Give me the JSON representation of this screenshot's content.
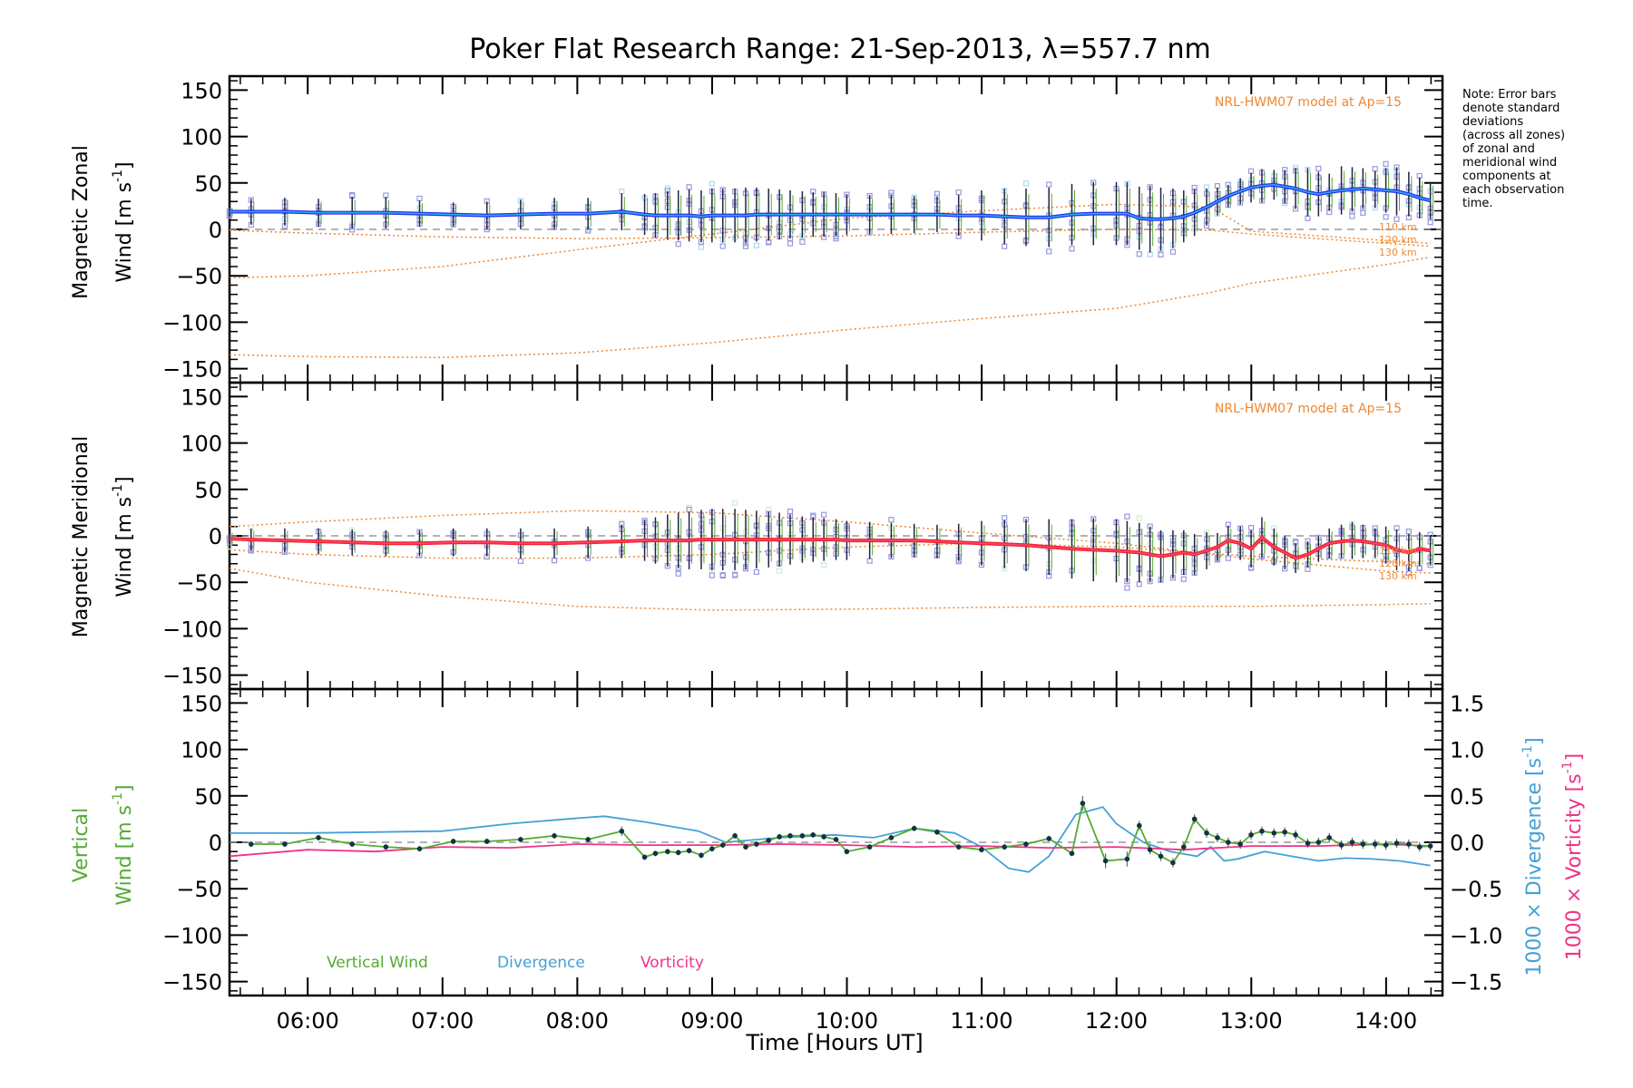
{
  "title": "Poker Flat Research Range: 21-Sep-2013, λ=557.7 nm",
  "note_lines": [
    "Note: Error bars",
    "denote standard",
    "deviations",
    "(across all zones)",
    "of zonal and",
    "meridional wind",
    "components at",
    "each observation",
    "time."
  ],
  "colors": {
    "zonal": "#2233ee",
    "zonal_light": "#33aaee",
    "meridional": "#ee2233",
    "meridional_light": "#ff4466",
    "scatter": "#9999dd",
    "model": "#ee8833",
    "vertical": "#55aa33",
    "divergence": "#44a0d8",
    "vorticity": "#ee3388",
    "errorbar": "#222244",
    "zero": "#999999"
  },
  "chart_data": [
    {
      "type": "line",
      "id": "zonal",
      "ylabel_line1": "Magnetic Zonal",
      "ylabel_line2": "Wind [m s",
      "ylabel_exp": "-1",
      "ylabel_close": "]",
      "ylim": [
        -165,
        165
      ],
      "yticks": [
        150,
        100,
        50,
        0,
        -50,
        -100,
        -150
      ],
      "model_label": "NRL-HWM07 model at Ap=15",
      "model_altitudes": [
        "110 km",
        "120 km",
        "130 km"
      ],
      "x": [
        5.42,
        5.58,
        5.83,
        6.08,
        6.33,
        6.58,
        6.83,
        7.08,
        7.33,
        7.58,
        7.83,
        8.08,
        8.33,
        8.5,
        8.58,
        8.67,
        8.75,
        8.83,
        8.92,
        9.0,
        9.08,
        9.17,
        9.25,
        9.33,
        9.42,
        9.5,
        9.58,
        9.67,
        9.75,
        9.83,
        9.92,
        10.0,
        10.17,
        10.33,
        10.5,
        10.67,
        10.83,
        11.0,
        11.17,
        11.33,
        11.5,
        11.67,
        11.83,
        12.0,
        12.08,
        12.17,
        12.25,
        12.33,
        12.42,
        12.5,
        12.58,
        12.67,
        12.75,
        12.83,
        12.92,
        13.0,
        13.08,
        13.17,
        13.25,
        13.33,
        13.42,
        13.5,
        13.58,
        13.67,
        13.75,
        13.83,
        13.92,
        14.0,
        14.08,
        14.17,
        14.25,
        14.33
      ],
      "values": [
        19,
        19,
        19,
        18,
        18,
        18,
        17,
        16,
        15,
        16,
        17,
        17,
        19,
        16,
        15,
        15,
        15,
        15,
        14,
        15,
        15,
        15,
        15,
        16,
        16,
        16,
        16,
        16,
        16,
        16,
        16,
        16,
        16,
        16,
        16,
        16,
        15,
        15,
        14,
        13,
        13,
        16,
        17,
        17,
        17,
        12,
        11,
        11,
        12,
        14,
        18,
        24,
        30,
        36,
        41,
        45,
        47,
        48,
        46,
        44,
        40,
        38,
        40,
        42,
        43,
        44,
        43,
        42,
        41,
        38,
        34,
        31
      ],
      "errors": [
        5,
        14,
        15,
        15,
        17,
        17,
        14,
        13,
        15,
        16,
        17,
        17,
        20,
        22,
        24,
        26,
        27,
        28,
        28,
        29,
        29,
        29,
        30,
        29,
        28,
        27,
        26,
        25,
        24,
        24,
        23,
        22,
        21,
        21,
        20,
        19,
        22,
        27,
        30,
        31,
        32,
        33,
        34,
        34,
        34,
        34,
        36,
        34,
        32,
        28,
        25,
        20,
        15,
        12,
        14,
        16,
        18,
        16,
        18,
        22,
        26,
        24,
        20,
        26,
        24,
        22,
        20,
        24,
        26,
        24,
        22,
        20
      ],
      "model": [
        {
          "x": [
            5.42,
            6.0,
            7.0,
            8.0,
            9.0,
            10.0,
            11.0,
            12.0,
            12.7,
            13.0,
            14.0,
            14.33
          ],
          "values": [
            -1,
            -4,
            -8,
            -10,
            -9,
            -7,
            -3,
            0,
            -1,
            -5,
            -15,
            -18
          ]
        },
        {
          "x": [
            5.42,
            6.0,
            7.0,
            8.0,
            9.0,
            10.0,
            11.0,
            12.0,
            12.7,
            13.0,
            14.0,
            14.33
          ],
          "values": [
            -52,
            -50,
            -40,
            -22,
            -5,
            12,
            20,
            27,
            24,
            -2,
            -12,
            -15
          ]
        },
        {
          "x": [
            5.42,
            6.0,
            7.0,
            8.0,
            9.0,
            10.0,
            11.0,
            12.0,
            12.7,
            13.0,
            14.0,
            14.33
          ],
          "values": [
            -135,
            -137,
            -138,
            -133,
            -122,
            -108,
            -96,
            -85,
            -68,
            -58,
            -38,
            -30
          ]
        }
      ]
    },
    {
      "type": "line",
      "id": "meridional",
      "ylabel_line1": "Magnetic Meridional",
      "ylabel_line2": "Wind [m s",
      "ylabel_exp": "-1",
      "ylabel_close": "]",
      "ylim": [
        -165,
        165
      ],
      "yticks": [
        150,
        100,
        50,
        0,
        -50,
        -100,
        -150
      ],
      "model_label": "NRL-HWM07 model at Ap=15",
      "model_altitudes": [
        "110 km",
        "120 km",
        "130 km"
      ],
      "x": [
        5.42,
        5.58,
        5.83,
        6.08,
        6.33,
        6.58,
        6.83,
        7.08,
        7.33,
        7.58,
        7.83,
        8.08,
        8.33,
        8.5,
        8.58,
        8.67,
        8.75,
        8.83,
        8.92,
        9.0,
        9.08,
        9.17,
        9.25,
        9.33,
        9.42,
        9.5,
        9.58,
        9.67,
        9.75,
        9.83,
        9.92,
        10.0,
        10.17,
        10.33,
        10.5,
        10.67,
        10.83,
        11.0,
        11.17,
        11.33,
        11.5,
        11.67,
        11.83,
        12.0,
        12.08,
        12.17,
        12.25,
        12.33,
        12.42,
        12.5,
        12.58,
        12.67,
        12.75,
        12.83,
        12.92,
        13.0,
        13.08,
        13.17,
        13.25,
        13.33,
        13.42,
        13.5,
        13.58,
        13.67,
        13.75,
        13.83,
        13.92,
        14.0,
        14.08,
        14.17,
        14.25,
        14.33
      ],
      "values": [
        -3,
        -4,
        -5,
        -6,
        -7,
        -8,
        -8,
        -7,
        -7,
        -8,
        -8,
        -7,
        -6,
        -5,
        -5,
        -5,
        -5,
        -5,
        -4,
        -4,
        -4,
        -4,
        -4,
        -4,
        -4,
        -4,
        -4,
        -4,
        -4,
        -4,
        -4,
        -5,
        -5,
        -5,
        -5,
        -6,
        -7,
        -8,
        -9,
        -10,
        -12,
        -14,
        -15,
        -16,
        -17,
        -18,
        -20,
        -22,
        -20,
        -18,
        -20,
        -16,
        -12,
        -5,
        -8,
        -14,
        -2,
        -12,
        -18,
        -24,
        -20,
        -14,
        -8,
        -6,
        -5,
        -6,
        -8,
        -10,
        -15,
        -18,
        -14,
        -16
      ],
      "errors": [
        8,
        12,
        13,
        14,
        14,
        14,
        14,
        15,
        15,
        16,
        16,
        17,
        18,
        22,
        25,
        28,
        30,
        31,
        32,
        33,
        33,
        33,
        32,
        31,
        30,
        29,
        27,
        25,
        24,
        23,
        22,
        21,
        20,
        19,
        18,
        18,
        20,
        24,
        26,
        28,
        30,
        32,
        34,
        34,
        33,
        32,
        30,
        28,
        26,
        24,
        22,
        20,
        15,
        16,
        18,
        20,
        22,
        20,
        18,
        16,
        14,
        14,
        16,
        18,
        20,
        18,
        16,
        20,
        22,
        20,
        18,
        16
      ],
      "model": [
        {
          "x": [
            5.42,
            6.0,
            7.0,
            8.0,
            9.0,
            10.0,
            11.0,
            12.0,
            13.0,
            14.0,
            14.33
          ],
          "values": [
            10,
            15,
            22,
            27,
            25,
            15,
            3,
            -8,
            -25,
            -38,
            -40
          ]
        },
        {
          "x": [
            5.42,
            6.0,
            7.0,
            8.0,
            9.0,
            10.0,
            11.0,
            12.0,
            13.0,
            14.0,
            14.33
          ],
          "values": [
            -15,
            -20,
            -24,
            -24,
            -20,
            -12,
            -8,
            -12,
            -22,
            -28,
            -30
          ]
        },
        {
          "x": [
            5.42,
            6.0,
            7.0,
            8.0,
            9.0,
            10.0,
            11.0,
            12.0,
            13.0,
            14.0,
            14.33
          ],
          "values": [
            -35,
            -50,
            -65,
            -76,
            -80,
            -79,
            -77,
            -76,
            -76,
            -74,
            -73
          ]
        }
      ]
    },
    {
      "type": "line",
      "id": "vertical",
      "ylabel_left_line1": "Vertical",
      "ylabel_left_line2a": "Wind ",
      "ylabel_left_line2b": "[m s",
      "ylabel_exp": "-1",
      "ylabel_close": "]",
      "ylabel_right1a": "1000 × Divergence ",
      "ylabel_right1b": "[s",
      "ylabel_right2a": "1000 × Vorticity ",
      "ylabel_right2b": "[s",
      "ylim": [
        -165,
        165
      ],
      "yticks": [
        150,
        100,
        50,
        0,
        -50,
        -100,
        -150
      ],
      "y2lim": [
        -1.65,
        1.65
      ],
      "y2ticks": [
        "1.5",
        "1.0",
        "0.5",
        "0.0",
        "-0.5",
        "-1.0",
        "-1.5"
      ],
      "xlabel": "Time [Hours UT]",
      "xlim": [
        5.42,
        14.42
      ],
      "xticks": [
        "06:00",
        "07:00",
        "08:00",
        "09:00",
        "10:00",
        "11:00",
        "12:00",
        "13:00",
        "14:00"
      ],
      "legend": [
        "Vertical Wind",
        "Divergence",
        "Vorticity"
      ],
      "vertical": {
        "x": [
          5.58,
          5.83,
          6.08,
          6.33,
          6.58,
          6.83,
          7.08,
          7.33,
          7.58,
          7.83,
          8.08,
          8.33,
          8.5,
          8.58,
          8.67,
          8.75,
          8.83,
          8.92,
          9.0,
          9.08,
          9.17,
          9.25,
          9.33,
          9.42,
          9.5,
          9.58,
          9.67,
          9.75,
          9.83,
          9.92,
          10.0,
          10.17,
          10.33,
          10.5,
          10.67,
          10.83,
          11.0,
          11.17,
          11.33,
          11.5,
          11.67,
          11.75,
          11.92,
          12.08,
          12.17,
          12.25,
          12.33,
          12.42,
          12.5,
          12.58,
          12.67,
          12.75,
          12.83,
          12.92,
          13.0,
          13.08,
          13.17,
          13.25,
          13.33,
          13.42,
          13.5,
          13.58,
          13.67,
          13.75,
          13.83,
          13.92,
          14.0,
          14.08,
          14.17,
          14.25,
          14.33
        ],
        "values": [
          -2,
          -2,
          5,
          -2,
          -5,
          -7,
          1,
          1,
          3,
          7,
          3,
          12,
          -16,
          -12,
          -10,
          -11,
          -9,
          -14,
          -7,
          -3,
          7,
          -5,
          -2,
          2,
          6,
          7,
          7,
          8,
          6,
          3,
          -10,
          -5,
          5,
          15,
          11,
          -5,
          -8,
          -5,
          -2,
          4,
          -12,
          42,
          -20,
          -18,
          18,
          -8,
          -15,
          -22,
          -5,
          25,
          10,
          5,
          0,
          -2,
          8,
          12,
          10,
          11,
          8,
          -1,
          0,
          5,
          -3,
          0,
          -2,
          -2,
          -3,
          -1,
          -2,
          -5,
          -4
        ],
        "errors": [
          3,
          3,
          3,
          3,
          3,
          3,
          3,
          3,
          3,
          3,
          3,
          5,
          3,
          3,
          3,
          3,
          3,
          3,
          3,
          3,
          3,
          3,
          3,
          3,
          3,
          3,
          3,
          3,
          3,
          3,
          3,
          3,
          3,
          3,
          3,
          3,
          3,
          3,
          3,
          3,
          3,
          8,
          8,
          8,
          5,
          5,
          5,
          5,
          5,
          5,
          5,
          5,
          5,
          5,
          5,
          5,
          5,
          5,
          5,
          5,
          5,
          5,
          5,
          5,
          5,
          5,
          5,
          5,
          5,
          5,
          5
        ]
      },
      "divergence": {
        "x": [
          5.42,
          6.0,
          7.0,
          7.5,
          8.0,
          8.2,
          8.5,
          8.9,
          9.1,
          9.5,
          9.9,
          10.2,
          10.5,
          10.8,
          11.0,
          11.2,
          11.35,
          11.5,
          11.7,
          11.9,
          12.0,
          12.2,
          12.4,
          12.6,
          12.7,
          12.8,
          12.9,
          13.1,
          13.3,
          13.5,
          13.7,
          13.9,
          14.1,
          14.33
        ],
        "values": [
          0.1,
          0.1,
          0.12,
          0.2,
          0.26,
          0.28,
          0.22,
          0.12,
          0.0,
          0.05,
          0.08,
          0.05,
          0.15,
          0.1,
          -0.05,
          -0.28,
          -0.32,
          -0.15,
          0.3,
          0.38,
          0.2,
          0.0,
          -0.1,
          -0.15,
          -0.05,
          -0.2,
          -0.18,
          -0.1,
          -0.15,
          -0.2,
          -0.17,
          -0.18,
          -0.2,
          -0.25
        ]
      },
      "vorticity": {
        "x": [
          5.42,
          6.0,
          6.5,
          7.0,
          7.5,
          8.0,
          8.5,
          9.0,
          9.5,
          10.0,
          10.5,
          11.0,
          11.5,
          12.0,
          12.5,
          13.0,
          13.5,
          14.0,
          14.33
        ],
        "values": [
          -0.15,
          -0.08,
          -0.1,
          -0.05,
          -0.06,
          -0.02,
          -0.03,
          -0.03,
          -0.02,
          -0.03,
          -0.05,
          -0.04,
          -0.06,
          -0.05,
          -0.08,
          -0.04,
          -0.04,
          -0.02,
          -0.04
        ]
      }
    }
  ]
}
